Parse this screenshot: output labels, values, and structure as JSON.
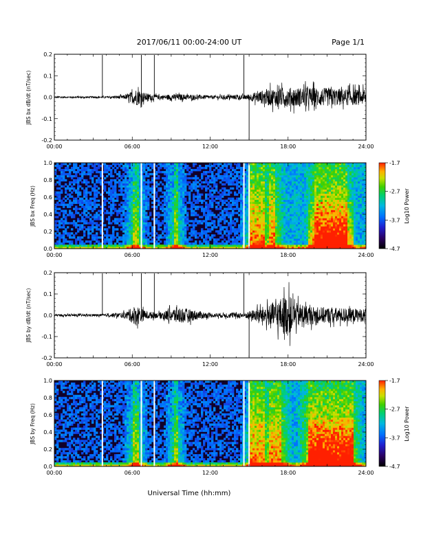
{
  "header": {
    "title": "2017/06/11  00:00-24:00 UT",
    "page": "Page 1/1"
  },
  "colors": {
    "trace": "#000000",
    "colormap": [
      "#000000",
      "#2a0060",
      "#2020d0",
      "#0070ff",
      "#00b8e0",
      "#00d070",
      "#40d000",
      "#c8e000",
      "#ffb000",
      "#ff2000"
    ],
    "gap": "#ffffff"
  },
  "xaxis": {
    "ticks": [
      "00:00",
      "06:00",
      "12:00",
      "18:00",
      "24:00"
    ],
    "tick_hours": [
      0,
      6,
      12,
      18,
      24
    ],
    "label": "Universal Time (hh:mm)"
  },
  "chart_data": [
    {
      "type": "line",
      "ylabel": "JBS bx dB/dt (nT/sec)",
      "xlim": [
        0,
        24
      ],
      "ylim": [
        -0.2,
        0.2
      ],
      "yticks": [
        "0.2",
        "0.1",
        "0.0",
        "-0.1",
        "-0.2"
      ],
      "ytick_values": [
        0.2,
        0.1,
        0.0,
        -0.1,
        -0.2
      ],
      "spikes_hours": [
        3.7,
        6.7,
        7.7,
        14.6,
        15.0
      ],
      "series": [
        {
          "x_hours": [
            0,
            4,
            5.5,
            6.3,
            7,
            8,
            9.5,
            12,
            14.8,
            16.5,
            18,
            20,
            22,
            24
          ],
          "amplitude": [
            0.004,
            0.004,
            0.01,
            0.04,
            0.02,
            0.01,
            0.015,
            0.008,
            0.012,
            0.04,
            0.045,
            0.045,
            0.04,
            0.035
          ]
        }
      ]
    },
    {
      "type": "heatmap",
      "ylabel": "JBS bx Freq (Hz)",
      "xlim": [
        0,
        24
      ],
      "ylim": [
        0,
        1
      ],
      "yticks": [
        "1.0",
        "0.8",
        "0.6",
        "0.4",
        "0.2",
        "0.0"
      ],
      "ytick_values": [
        1.0,
        0.8,
        0.6,
        0.4,
        0.2,
        0.0
      ],
      "colorbar": {
        "label": "Log10 Power",
        "ticks": [
          "-1.7",
          "-2.7",
          "-3.7",
          "-4.7"
        ],
        "tick_values": [
          -1.7,
          -2.7,
          -3.7,
          -4.7
        ],
        "range": [
          -4.7,
          -1.7
        ]
      },
      "gaps_hours": [
        3.7,
        6.7,
        7.7,
        14.6,
        15.0
      ],
      "activity_bands_hours": [
        [
          6.0,
          6.5
        ],
        [
          9.2,
          9.5
        ],
        [
          15.0,
          16.2
        ],
        [
          16.5,
          17.0
        ],
        [
          20.0,
          22.5
        ]
      ]
    },
    {
      "type": "line",
      "ylabel": "JBS by dB/dt (nT/sec)",
      "xlim": [
        0,
        24
      ],
      "ylim": [
        -0.2,
        0.2
      ],
      "yticks": [
        "0.2",
        "0.1",
        "0.0",
        "-0.1",
        "-0.2"
      ],
      "ytick_values": [
        0.2,
        0.1,
        0.0,
        -0.1,
        -0.2
      ],
      "spikes_hours": [
        3.7,
        6.7,
        7.7,
        14.6,
        15.0
      ],
      "series": [
        {
          "x_hours": [
            0,
            4,
            5.5,
            6.3,
            7,
            8,
            9.5,
            12,
            14.8,
            16.5,
            18,
            18.5,
            20,
            22,
            24
          ],
          "amplitude": [
            0.005,
            0.006,
            0.015,
            0.05,
            0.02,
            0.012,
            0.04,
            0.01,
            0.015,
            0.05,
            0.1,
            0.06,
            0.04,
            0.035,
            0.03
          ]
        }
      ]
    },
    {
      "type": "heatmap",
      "ylabel": "JBS by Freq (Hz)",
      "xlim": [
        0,
        24
      ],
      "ylim": [
        0,
        1
      ],
      "yticks": [
        "1.0",
        "0.8",
        "0.6",
        "0.4",
        "0.2",
        "0.0"
      ],
      "ytick_values": [
        1.0,
        0.8,
        0.6,
        0.4,
        0.2,
        0.0
      ],
      "colorbar": {
        "label": "Log10 Power",
        "ticks": [
          "-1.7",
          "-2.7",
          "-3.7",
          "-4.7"
        ],
        "tick_values": [
          -1.7,
          -2.7,
          -3.7,
          -4.7
        ],
        "range": [
          -4.7,
          -1.7
        ]
      },
      "gaps_hours": [
        3.7,
        6.7,
        7.7,
        14.6,
        15.0
      ],
      "activity_bands_hours": [
        [
          6.0,
          6.5
        ],
        [
          9.2,
          9.5
        ],
        [
          15.0,
          16.2
        ],
        [
          16.5,
          17.5
        ],
        [
          19.5,
          23.0
        ]
      ]
    }
  ]
}
